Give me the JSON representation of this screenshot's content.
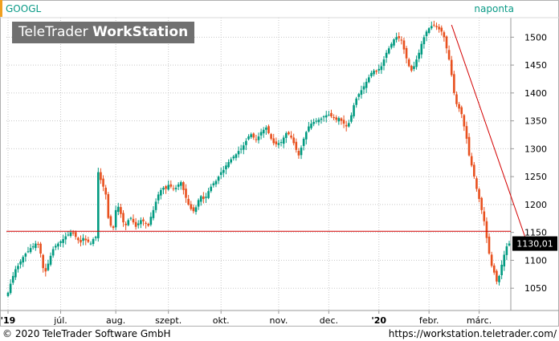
{
  "header": {
    "ticker": "GOOGL",
    "period": "naponta"
  },
  "watermark": {
    "brand": "TeleTrader",
    "product": "WorkStation"
  },
  "footer": {
    "copyright": "© 2020 TeleTrader Software GmbH",
    "url": "https://workstation.teletrader.com/"
  },
  "colors": {
    "up": "#009a80",
    "down": "#e8501e",
    "line": "#d40000",
    "grid": "#c8c8c8",
    "price_label_bg": "#000000"
  },
  "chart_data": {
    "type": "candlestick",
    "symbol": "GOOGL",
    "interval": "naponta",
    "ylim": [
      1010,
      1535
    ],
    "yticks": [
      1050,
      1100,
      1150,
      1200,
      1250,
      1300,
      1350,
      1400,
      1450,
      1500
    ],
    "x_ticks": [
      {
        "label": "'19",
        "index": 0
      },
      {
        "label": "júl.",
        "index": 21
      },
      {
        "label": "aug.",
        "index": 43
      },
      {
        "label": "szept.",
        "index": 64
      },
      {
        "label": "okt.",
        "index": 85
      },
      {
        "label": "nov.",
        "index": 108
      },
      {
        "label": "dec.",
        "index": 128
      },
      {
        "label": "'20",
        "index": 148
      },
      {
        "label": "febr.",
        "index": 168
      },
      {
        "label": "márc.",
        "index": 188
      }
    ],
    "last_price": "1130,01",
    "last_value": 1130.01,
    "horizontal_line": 1152,
    "trend_line": [
      {
        "index": 177,
        "value": 1522
      },
      {
        "index": 208,
        "value": 1120
      }
    ],
    "close": [
      1042,
      1058,
      1072,
      1084,
      1090,
      1098,
      1106,
      1112,
      1116,
      1122,
      1125,
      1130,
      1128,
      1112,
      1086,
      1080,
      1094,
      1108,
      1120,
      1126,
      1130,
      1134,
      1138,
      1143,
      1146,
      1150,
      1148,
      1142,
      1136,
      1132,
      1140,
      1136,
      1133,
      1130,
      1138,
      1142,
      1258,
      1244,
      1232,
      1218,
      1176,
      1162,
      1158,
      1190,
      1196,
      1183,
      1168,
      1163,
      1172,
      1176,
      1168,
      1160,
      1166,
      1172,
      1170,
      1166,
      1162,
      1178,
      1190,
      1205,
      1218,
      1226,
      1230,
      1228,
      1235,
      1232,
      1228,
      1230,
      1236,
      1240,
      1226,
      1212,
      1200,
      1192,
      1188,
      1195,
      1208,
      1215,
      1210,
      1214,
      1224,
      1232,
      1238,
      1242,
      1250,
      1258,
      1262,
      1270,
      1276,
      1281,
      1286,
      1290,
      1296,
      1300,
      1306,
      1314,
      1322,
      1326,
      1320,
      1316,
      1322,
      1330,
      1334,
      1338,
      1328,
      1318,
      1310,
      1308,
      1310,
      1312,
      1320,
      1328,
      1326,
      1320,
      1310,
      1298,
      1288,
      1302,
      1318,
      1330,
      1340,
      1345,
      1348,
      1350,
      1352,
      1354,
      1358,
      1360,
      1361,
      1358,
      1355,
      1352,
      1355,
      1350,
      1345,
      1340,
      1346,
      1360,
      1378,
      1390,
      1398,
      1405,
      1412,
      1420,
      1428,
      1436,
      1440,
      1438,
      1443,
      1448,
      1460,
      1472,
      1480,
      1488,
      1496,
      1500,
      1498,
      1494,
      1478,
      1462,
      1448,
      1440,
      1448,
      1460,
      1472,
      1488,
      1500,
      1510,
      1516,
      1520,
      1522,
      1518,
      1514,
      1510,
      1500,
      1480,
      1460,
      1432,
      1400,
      1380,
      1372,
      1362,
      1340,
      1318,
      1288,
      1270,
      1250,
      1228,
      1210,
      1190,
      1170,
      1140,
      1112,
      1090,
      1078,
      1062,
      1072,
      1092,
      1110,
      1125,
      1130.01
    ]
  }
}
